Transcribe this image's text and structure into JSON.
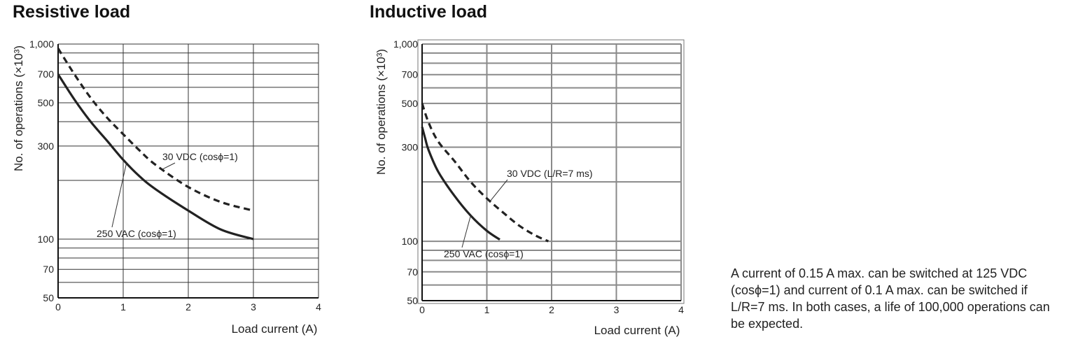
{
  "chart_data": [
    {
      "type": "line",
      "title": "Resistive load",
      "xlabel": "Load current (A)",
      "ylabel": "No. of operations (×10³)",
      "y_scale": "log",
      "xlim": [
        0,
        4
      ],
      "ylim": [
        50,
        1000
      ],
      "x_ticks": [
        0,
        1,
        2,
        3,
        4
      ],
      "y_ticks": [
        {
          "value": 50,
          "label": "50"
        },
        {
          "value": 70,
          "label": "70"
        },
        {
          "value": 100,
          "label": "100"
        },
        {
          "value": 300,
          "label": "300"
        },
        {
          "value": 500,
          "label": "500"
        },
        {
          "value": 700,
          "label": "700"
        },
        {
          "value": 1000,
          "label": "1,000"
        }
      ],
      "grid": true,
      "series": [
        {
          "name": "30 VDC (cosϕ=1)",
          "style": "dashed",
          "x": [
            0,
            0.25,
            0.5,
            0.75,
            1,
            1.25,
            1.5,
            2,
            2.5,
            3
          ],
          "y": [
            950,
            700,
            530,
            420,
            345,
            285,
            240,
            185,
            155,
            140
          ]
        },
        {
          "name": "250 VAC (cosϕ=1)",
          "style": "solid",
          "x": [
            0,
            0.25,
            0.5,
            0.75,
            1,
            1.25,
            1.5,
            2,
            2.5,
            3
          ],
          "y": [
            700,
            520,
            400,
            320,
            255,
            210,
            180,
            140,
            112,
            100
          ]
        }
      ],
      "annotations": [
        {
          "text": "30 VDC (cosϕ=1)",
          "series": 0
        },
        {
          "text": "250 VAC (cosϕ=1)",
          "series": 1
        }
      ]
    },
    {
      "type": "line",
      "title": "Inductive load",
      "xlabel": "Load current (A)",
      "ylabel": "No. of operations (×10³)",
      "y_scale": "log",
      "xlim": [
        0,
        4
      ],
      "ylim": [
        50,
        1000
      ],
      "x_ticks": [
        0,
        1,
        2,
        3,
        4
      ],
      "y_ticks": [
        {
          "value": 50,
          "label": "50"
        },
        {
          "value": 70,
          "label": "70"
        },
        {
          "value": 100,
          "label": "100"
        },
        {
          "value": 300,
          "label": "300"
        },
        {
          "value": 500,
          "label": "500"
        },
        {
          "value": 700,
          "label": "700"
        },
        {
          "value": 1000,
          "label": "1,000"
        }
      ],
      "grid": true,
      "series": [
        {
          "name": "30 VDC (L/R=7 ms)",
          "style": "dashed",
          "x": [
            0,
            0.1,
            0.25,
            0.5,
            0.75,
            1,
            1.25,
            1.5,
            1.75,
            1.95
          ],
          "y": [
            500,
            400,
            320,
            255,
            200,
            165,
            140,
            120,
            107,
            100
          ]
        },
        {
          "name": "250 VAC (cosϕ=1)",
          "style": "solid",
          "x": [
            0,
            0.05,
            0.1,
            0.25,
            0.5,
            0.75,
            1,
            1.2
          ],
          "y": [
            380,
            330,
            290,
            225,
            170,
            135,
            113,
            102
          ]
        }
      ],
      "annotations": [
        {
          "text": "30 VDC (L/R=7 ms)",
          "series": 0
        },
        {
          "text": "250 VAC (cosϕ=1)",
          "series": 1
        }
      ]
    }
  ],
  "note": "A current of 0.15 A max. can be switched at 125 VDC (cosϕ=1) and current of 0.1 A max. can be switched if L/R=7 ms. In both cases, a life of 100,000 operations can be expected."
}
